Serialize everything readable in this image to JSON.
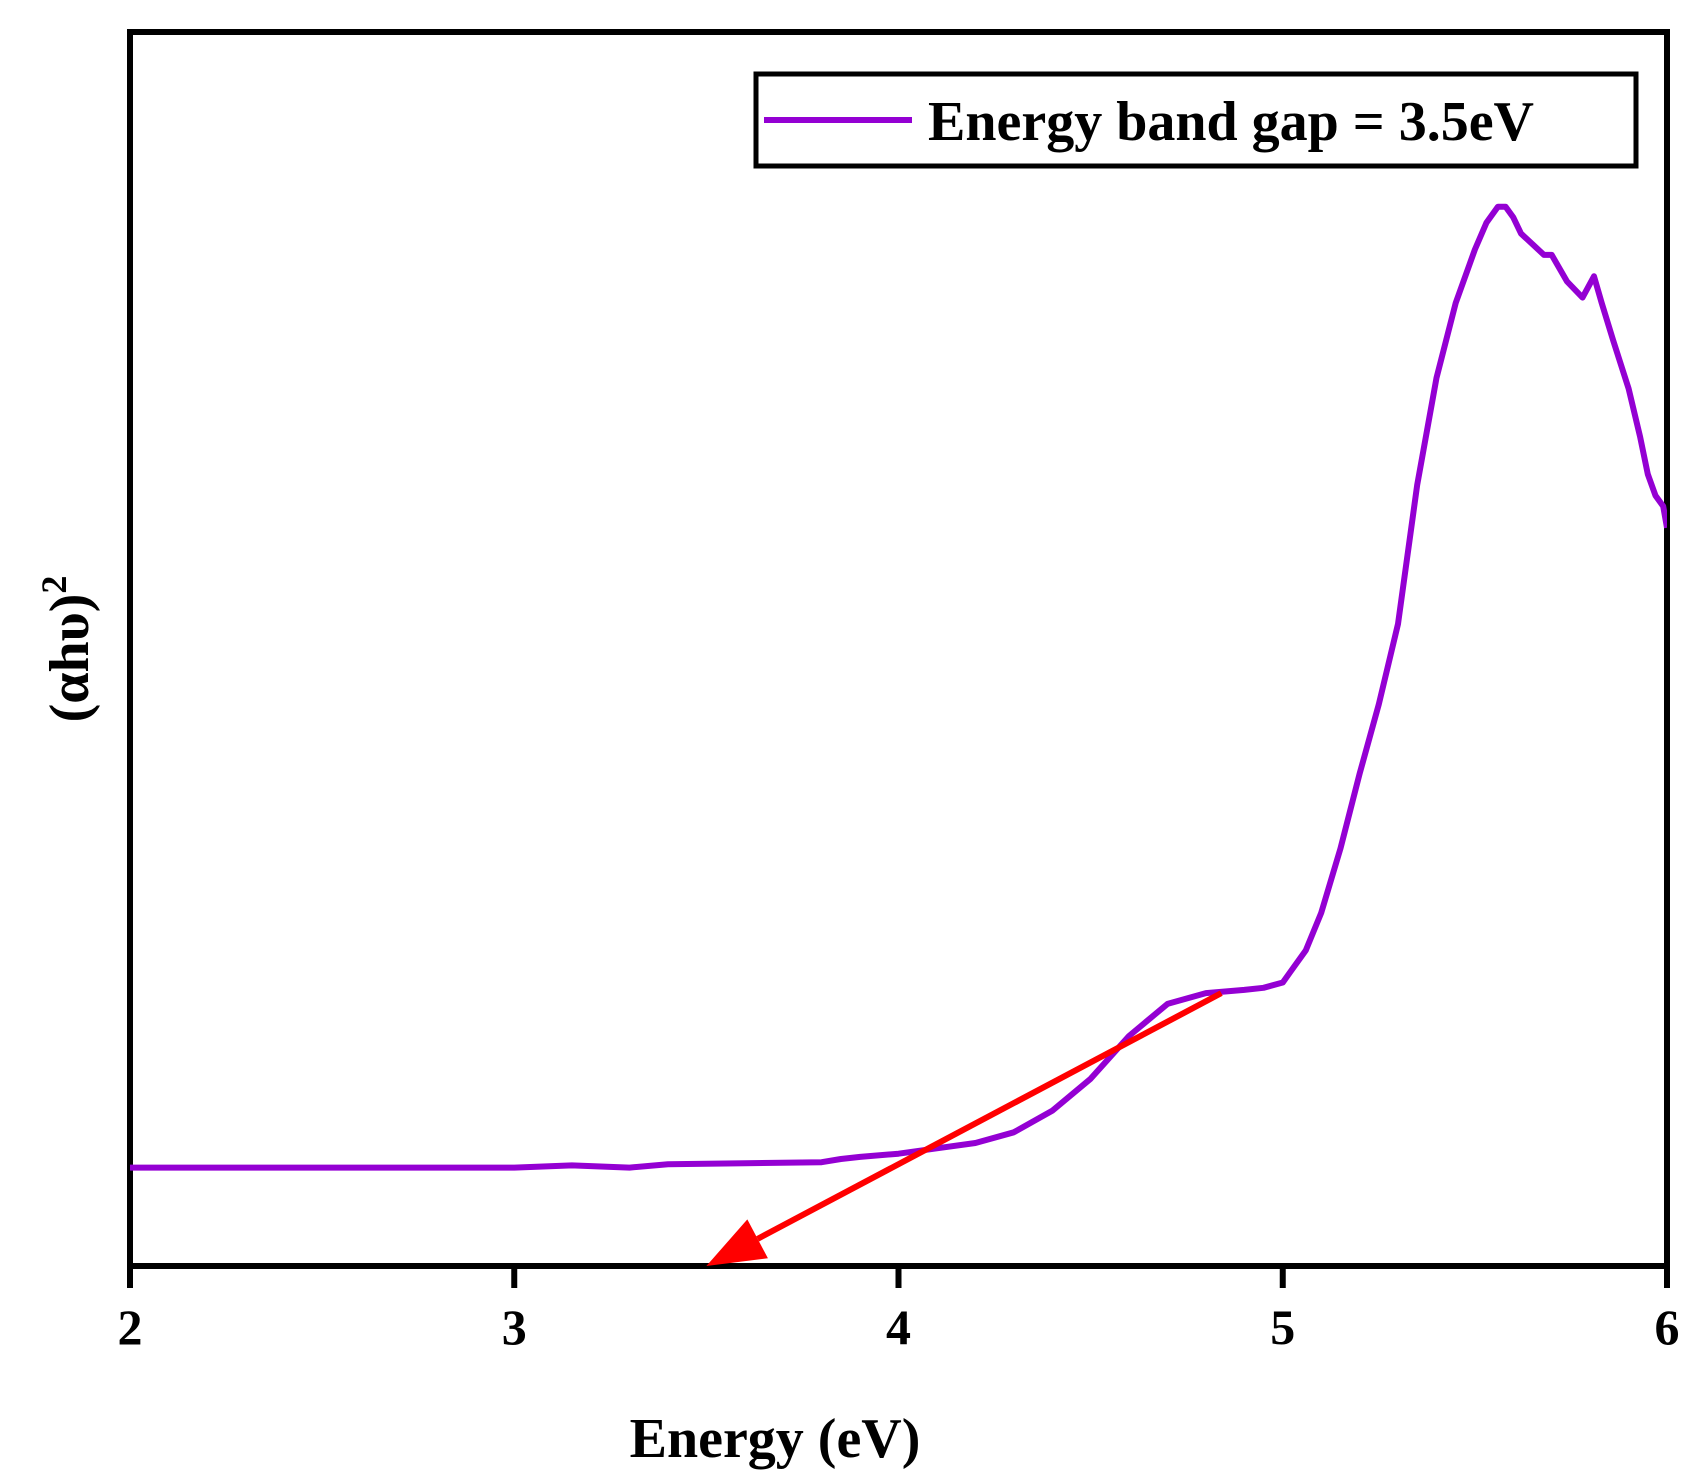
{
  "chart_data": {
    "type": "line",
    "title": "",
    "xlabel": "Energy (eV)",
    "ylabel_base": "(αhυ)",
    "ylabel_sup": "2",
    "xlim": [
      2,
      6
    ],
    "ylim": [
      0,
      100
    ],
    "xticks": [
      2,
      3,
      4,
      5,
      6
    ],
    "grid": false,
    "legend_position": "top-right",
    "series": [
      {
        "name": "Energy band gap = 3.5eV",
        "color": "#9400D3",
        "x": [
          2.0,
          2.5,
          3.0,
          3.15,
          3.3,
          3.4,
          3.6,
          3.8,
          3.85,
          3.9,
          4.0,
          4.1,
          4.2,
          4.3,
          4.4,
          4.5,
          4.6,
          4.7,
          4.8,
          4.9,
          4.95,
          5.0,
          5.02,
          5.06,
          5.1,
          5.15,
          5.2,
          5.25,
          5.3,
          5.35,
          5.4,
          5.45,
          5.5,
          5.53,
          5.56,
          5.58,
          5.6,
          5.62,
          5.65,
          5.68,
          5.7,
          5.74,
          5.78,
          5.81,
          5.83,
          5.86,
          5.9,
          5.93,
          5.95,
          5.97,
          5.99,
          6.0
        ],
        "y": [
          9.2,
          9.2,
          9.2,
          9.4,
          9.2,
          9.5,
          9.6,
          9.7,
          10.0,
          10.2,
          10.5,
          11.0,
          11.5,
          12.5,
          14.5,
          17.5,
          21.5,
          24.5,
          25.5,
          25.8,
          26.0,
          26.5,
          27.5,
          29.5,
          33.0,
          39.0,
          46.0,
          52.5,
          60.0,
          73.0,
          83.0,
          90.0,
          95.0,
          97.5,
          99.0,
          99.0,
          98.0,
          96.5,
          95.5,
          94.5,
          94.5,
          92.0,
          90.5,
          92.5,
          90.0,
          86.5,
          82.0,
          77.5,
          74.0,
          72.0,
          71.0,
          69.0
        ]
      }
    ],
    "annotation": {
      "type": "arrow",
      "color": "#FF0000",
      "from": [
        4.84,
        25.5
      ],
      "to": [
        3.5,
        0.0
      ]
    }
  }
}
